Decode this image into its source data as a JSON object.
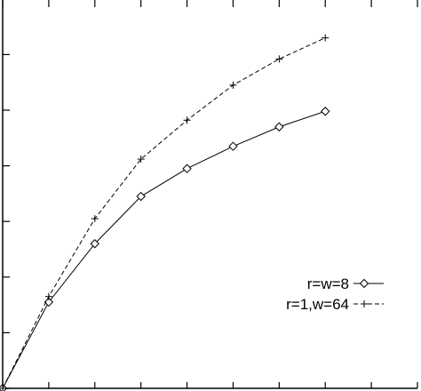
{
  "chart_data": {
    "type": "line",
    "title": "",
    "xlabel": "",
    "ylabel": "",
    "xlim": [
      0,
      9
    ],
    "ylim": [
      0,
      7.3
    ],
    "xticks": [
      0,
      1,
      2,
      3,
      4,
      5,
      6,
      7,
      8,
      9
    ],
    "yticks": [
      0,
      1,
      2,
      3,
      4,
      5,
      6,
      7
    ],
    "grid": false,
    "legend_position": "bottom-right",
    "series": [
      {
        "name": "r=w=8",
        "marker": "diamond",
        "line_style": "solid",
        "color": "#000000",
        "x": [
          0,
          1,
          2,
          3,
          4,
          5,
          6,
          7
        ],
        "y": [
          0.0,
          1.55,
          2.6,
          3.45,
          3.95,
          4.35,
          4.7,
          4.98
        ]
      },
      {
        "name": "r=1,w=64",
        "marker": "plus",
        "line_style": "dashed",
        "color": "#000000",
        "x": [
          0,
          1,
          2,
          3,
          4,
          5,
          6,
          7
        ],
        "y": [
          0.0,
          1.65,
          3.05,
          4.12,
          4.82,
          5.45,
          5.92,
          6.3
        ]
      }
    ]
  }
}
